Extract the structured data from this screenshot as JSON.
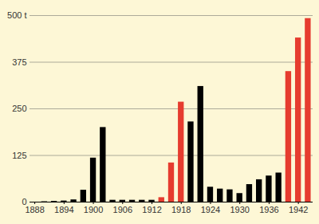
{
  "chart_data": {
    "type": "bar",
    "x": [
      1890,
      1892,
      1894,
      1896,
      1898,
      1900,
      1902,
      1904,
      1906,
      1908,
      1910,
      1912,
      1914,
      1916,
      1918,
      1920,
      1922,
      1924,
      1926,
      1928,
      1930,
      1932,
      1934,
      1936,
      1938,
      1940,
      1942,
      1944
    ],
    "values": [
      1,
      2,
      3,
      6,
      32,
      118,
      200,
      5,
      5,
      5,
      5,
      5,
      12,
      105,
      268,
      215,
      310,
      40,
      35,
      33,
      23,
      47,
      60,
      70,
      78,
      350,
      440,
      492
    ],
    "colors": [
      "#000000",
      "#000000",
      "#000000",
      "#000000",
      "#000000",
      "#000000",
      "#000000",
      "#000000",
      "#000000",
      "#000000",
      "#000000",
      "#000000",
      "#e63c2f",
      "#e63c2f",
      "#e63c2f",
      "#000000",
      "#000000",
      "#000000",
      "#000000",
      "#000000",
      "#000000",
      "#000000",
      "#000000",
      "#000000",
      "#000000",
      "#e63c2f",
      "#e63c2f",
      "#e63c2f"
    ],
    "xlim": [
      1887,
      1945
    ],
    "xticks": [
      1888,
      1894,
      1900,
      1906,
      1912,
      1918,
      1924,
      1930,
      1936,
      1942
    ],
    "ylim": [
      0,
      500
    ],
    "yticks": [
      0,
      125,
      250,
      375,
      {
        "value": 500,
        "label": "500 t"
      }
    ],
    "grid": true
  }
}
